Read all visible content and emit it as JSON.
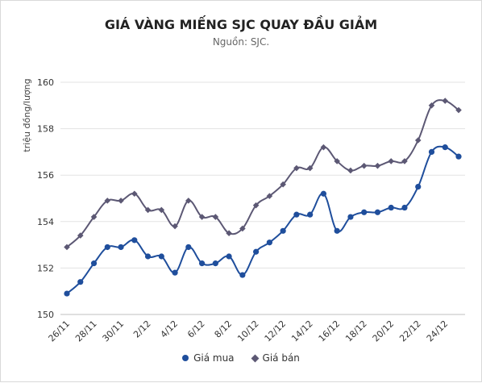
{
  "chart_data": {
    "type": "line",
    "title": "GIÁ VÀNG MIẾNG SJC QUAY ĐẦU GIẢM",
    "subtitle": "Nguồn: SJC.",
    "ylabel": "triệu đồng/lượng",
    "xlabel": "",
    "ylim": [
      150,
      160
    ],
    "yticks": [
      150,
      152,
      154,
      156,
      158,
      160
    ],
    "x": [
      "26/11",
      "27/11",
      "28/11",
      "29/11",
      "30/11",
      "1/12",
      "2/12",
      "3/12",
      "4/12",
      "5/12",
      "6/12",
      "7/12",
      "8/12",
      "9/12",
      "10/12",
      "11/12",
      "12/12",
      "13/12",
      "14/12",
      "15/12",
      "16/12",
      "17/12",
      "18/12",
      "19/12",
      "20/12",
      "21/12",
      "22/12",
      "23/12",
      "24/12",
      "25/12"
    ],
    "xtick_labels": [
      "26/11",
      "28/11",
      "30/11",
      "2/12",
      "4/12",
      "6/12",
      "8/12",
      "10/12",
      "12/12",
      "14/12",
      "16/12",
      "18/12",
      "20/12",
      "22/12",
      "24/12"
    ],
    "series": [
      {
        "name": "Giá mua",
        "color": "#1f4e9c",
        "marker": "circle",
        "values": [
          150.9,
          151.4,
          152.2,
          152.9,
          152.9,
          153.2,
          152.5,
          152.5,
          151.8,
          152.9,
          152.2,
          152.2,
          152.5,
          151.7,
          152.7,
          153.1,
          153.6,
          154.3,
          154.3,
          155.2,
          153.6,
          154.2,
          154.4,
          154.4,
          154.6,
          154.6,
          155.5,
          157.0,
          157.2,
          156.8
        ]
      },
      {
        "name": "Giá bán",
        "color": "#5c5874",
        "marker": "diamond",
        "values": [
          152.9,
          153.4,
          154.2,
          154.9,
          154.9,
          155.2,
          154.5,
          154.5,
          153.8,
          154.9,
          154.2,
          154.2,
          153.5,
          153.7,
          154.7,
          155.1,
          155.6,
          156.3,
          156.3,
          157.2,
          156.6,
          156.2,
          156.4,
          156.4,
          156.6,
          156.6,
          157.5,
          159.0,
          159.2,
          158.8
        ]
      }
    ],
    "grid": true,
    "legend": "bottom-center"
  }
}
